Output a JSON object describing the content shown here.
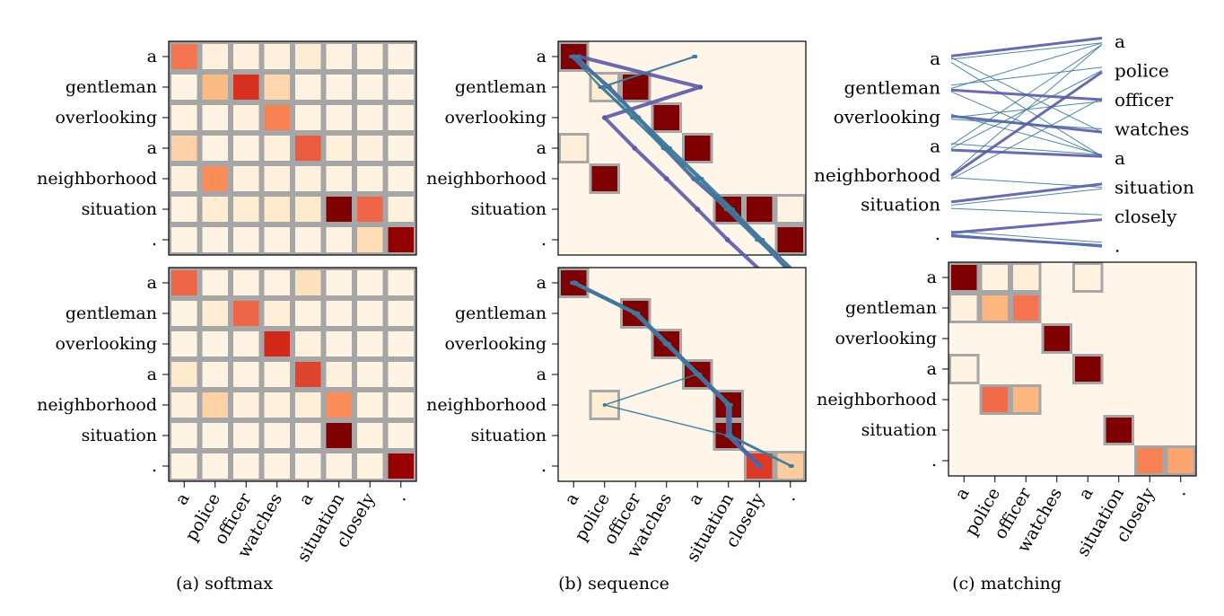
{
  "chart_data": [
    {
      "id": "softmax-top",
      "type": "heatmap",
      "panel": "(a)",
      "rows": [
        "a",
        "gentleman",
        "overlooking",
        "a",
        "neighborhood",
        "situation",
        "."
      ],
      "cols": [
        "a",
        "police",
        "officer",
        "watches",
        "a",
        "situation",
        "closely",
        "."
      ],
      "values": [
        [
          0.55,
          0.05,
          0.04,
          0.04,
          0.08,
          0.03,
          0.03,
          0.02
        ],
        [
          0.02,
          0.28,
          0.78,
          0.18,
          0.03,
          0.02,
          0.02,
          0.02
        ],
        [
          0.03,
          0.03,
          0.04,
          0.5,
          0.03,
          0.02,
          0.02,
          0.02
        ],
        [
          0.2,
          0.03,
          0.03,
          0.04,
          0.65,
          0.05,
          0.04,
          0.02
        ],
        [
          0.04,
          0.45,
          0.04,
          0.04,
          0.04,
          0.03,
          0.03,
          0.02
        ],
        [
          0.03,
          0.08,
          0.08,
          0.1,
          0.1,
          1.0,
          0.62,
          0.04
        ],
        [
          0.02,
          0.02,
          0.02,
          0.02,
          0.02,
          0.03,
          0.16,
          0.96
        ]
      ]
    },
    {
      "id": "softmax-bottom",
      "type": "heatmap",
      "panel": "(a)",
      "rows": [
        "a",
        "gentleman",
        "overlooking",
        "a",
        "neighborhood",
        "situation",
        "."
      ],
      "cols": [
        "a",
        "police",
        "officer",
        "watches",
        "a",
        "situation",
        "closely",
        "."
      ],
      "values": [
        [
          0.62,
          0.03,
          0.03,
          0.03,
          0.14,
          0.02,
          0.02,
          0.02
        ],
        [
          0.02,
          0.08,
          0.62,
          0.06,
          0.03,
          0.02,
          0.02,
          0.02
        ],
        [
          0.02,
          0.02,
          0.03,
          0.8,
          0.04,
          0.02,
          0.02,
          0.02
        ],
        [
          0.1,
          0.03,
          0.03,
          0.03,
          0.72,
          0.04,
          0.02,
          0.02
        ],
        [
          0.04,
          0.2,
          0.04,
          0.04,
          0.06,
          0.45,
          0.03,
          0.02
        ],
        [
          0.02,
          0.02,
          0.02,
          0.02,
          0.03,
          1.0,
          0.03,
          0.02
        ],
        [
          0.02,
          0.02,
          0.02,
          0.02,
          0.02,
          0.03,
          0.03,
          0.95
        ]
      ]
    },
    {
      "id": "sequence-top",
      "type": "heatmap",
      "panel": "(b)",
      "rows": [
        "a",
        "gentleman",
        "overlooking",
        "a",
        "neighborhood",
        "situation",
        "."
      ],
      "cols": [
        "a",
        "police",
        "officer",
        "watches",
        "a",
        "situation",
        "closely",
        "."
      ],
      "cells": [
        {
          "r": 0,
          "c": 0,
          "v": 1.0
        },
        {
          "r": 1,
          "c": 1,
          "v": 0.08
        },
        {
          "r": 1,
          "c": 2,
          "v": 1.0
        },
        {
          "r": 2,
          "c": 3,
          "v": 1.0
        },
        {
          "r": 3,
          "c": 0,
          "v": 0.06
        },
        {
          "r": 3,
          "c": 4,
          "v": 1.0
        },
        {
          "r": 4,
          "c": 1,
          "v": 1.0
        },
        {
          "r": 5,
          "c": 5,
          "v": 1.0
        },
        {
          "r": 5,
          "c": 6,
          "v": 1.0
        },
        {
          "r": 5,
          "c": 7,
          "v": 0.03
        },
        {
          "r": 6,
          "c": 7,
          "v": 1.0
        }
      ],
      "paths": [
        {
          "w": 4,
          "pts": [
            [
              0,
              0.0
            ],
            [
              1,
              0.5
            ],
            [
              2,
              0.3
            ],
            [
              3,
              -0.2
            ],
            [
              4,
              -0.4
            ],
            [
              5,
              0.0
            ],
            [
              6,
              0.0
            ],
            [
              7,
              -0.2
            ]
          ]
        },
        {
          "w": 4,
          "pts": [
            [
              0,
              0.6
            ],
            [
              4,
              0.3
            ],
            [
              1,
              0.0
            ],
            [
              2,
              -0.1
            ],
            [
              3,
              0.0
            ],
            [
              4,
              0.0
            ],
            [
              5,
              -0.1
            ],
            [
              6,
              0.1
            ],
            [
              7,
              0.2
            ]
          ]
        },
        {
          "w": 2,
          "pts": [
            [
              0,
              0.3
            ],
            [
              1,
              0.2
            ],
            [
              2,
              0.2
            ],
            [
              3,
              0.3
            ],
            [
              4,
              0.3
            ],
            [
              5,
              0.2
            ],
            [
              6,
              0.3
            ],
            [
              7,
              0.3
            ]
          ]
        },
        {
          "w": 1.5,
          "pts": [
            [
              0,
              -0.3
            ],
            [
              1,
              -0.3
            ],
            [
              2,
              0.0
            ],
            [
              3,
              0.1
            ],
            [
              4,
              0.1
            ],
            [
              5,
              0.3
            ],
            [
              6,
              -0.2
            ],
            [
              7,
              -0.2
            ]
          ]
        },
        {
          "w": 1.5,
          "pts": [
            [
              4,
              -0.2
            ],
            [
              1,
              -0.2
            ],
            [
              2,
              -0.3
            ],
            [
              3,
              -0.1
            ],
            [
              4,
              -0.2
            ],
            [
              5,
              0.4
            ],
            [
              6,
              0.4
            ],
            [
              7,
              0.4
            ]
          ]
        },
        {
          "w": 1.5,
          "pts": [
            [
              4,
              -0.4
            ],
            [
              1,
              -0.4
            ],
            [
              2,
              -0.4
            ],
            [
              3,
              -0.3
            ],
            [
              4,
              -0.3
            ],
            [
              5,
              -0.3
            ],
            [
              6,
              -0.3
            ],
            [
              7,
              -0.1
            ]
          ]
        },
        {
          "w": 2,
          "pts": [
            [
              0,
              0.4
            ],
            [
              1,
              0.4
            ],
            [
              2,
              0.4
            ],
            [
              3,
              0.4
            ],
            [
              4,
              0.5
            ],
            [
              5,
              0.5
            ],
            [
              6,
              0.2
            ],
            [
              7,
              0.4
            ]
          ]
        },
        {
          "w": 1.5,
          "pts": [
            [
              0,
              0.0
            ],
            [
              1,
              -0.5
            ],
            [
              2,
              -0.2
            ],
            [
              3,
              -0.4
            ],
            [
              4,
              0.4
            ],
            [
              5,
              -0.2
            ],
            [
              6,
              -0.1
            ],
            [
              7,
              0.1
            ]
          ]
        }
      ]
    },
    {
      "id": "sequence-bottom",
      "type": "heatmap",
      "panel": "(b)",
      "rows": [
        "a",
        "gentleman",
        "overlooking",
        "a",
        "neighborhood",
        "situation",
        "."
      ],
      "cols": [
        "a",
        "police",
        "officer",
        "watches",
        "a",
        "situation",
        "closely",
        "."
      ],
      "cells": [
        {
          "r": 0,
          "c": 0,
          "v": 1.0
        },
        {
          "r": 1,
          "c": 2,
          "v": 1.0
        },
        {
          "r": 2,
          "c": 3,
          "v": 1.0
        },
        {
          "r": 3,
          "c": 4,
          "v": 1.0
        },
        {
          "r": 4,
          "c": 1,
          "v": 0.08
        },
        {
          "r": 4,
          "c": 5,
          "v": 1.0
        },
        {
          "r": 5,
          "c": 5,
          "v": 1.0
        },
        {
          "r": 6,
          "c": 6,
          "v": 0.75
        },
        {
          "r": 6,
          "c": 7,
          "v": 0.22
        }
      ],
      "paths": [
        {
          "w": 4,
          "pts": [
            [
              0,
              0.0
            ],
            [
              2,
              0.0
            ],
            [
              3,
              0.0
            ],
            [
              4,
              0.0
            ],
            [
              5,
              0.0
            ],
            [
              5,
              0.0
            ],
            [
              6,
              0.0
            ]
          ]
        },
        {
          "w": 4,
          "pts": [
            [
              0,
              0.1
            ],
            [
              2,
              0.1
            ],
            [
              3,
              0.1
            ],
            [
              4,
              0.1
            ],
            [
              5,
              0.1
            ],
            [
              5,
              0.1
            ],
            [
              6,
              0.1
            ]
          ]
        },
        {
          "w": 2,
          "pts": [
            [
              0,
              0.2
            ],
            [
              2,
              0.2
            ],
            [
              3,
              0.2
            ],
            [
              4,
              0.2
            ],
            [
              5,
              0.2
            ],
            [
              5,
              0.2
            ],
            [
              7,
              0.1
            ]
          ]
        },
        {
          "w": 1.5,
          "pts": [
            [
              0,
              -0.1
            ],
            [
              2,
              -0.1
            ],
            [
              3,
              -0.1
            ],
            [
              4,
              -0.1
            ],
            [
              1,
              0.0
            ],
            [
              5,
              -0.1
            ],
            [
              7,
              0.0
            ]
          ]
        },
        {
          "w": 1.5,
          "pts": [
            [
              0,
              0.3
            ],
            [
              2,
              0.3
            ],
            [
              3,
              0.3
            ],
            [
              4,
              0.3
            ],
            [
              5,
              0.3
            ],
            [
              5,
              0.3
            ],
            [
              7,
              0.2
            ]
          ]
        },
        {
          "w": 1.5,
          "pts": [
            [
              0,
              -0.2
            ],
            [
              2,
              -0.2
            ],
            [
              3,
              -0.2
            ],
            [
              4,
              -0.2
            ],
            [
              5,
              -0.2
            ],
            [
              5,
              -0.2
            ],
            [
              6,
              -0.2
            ]
          ]
        }
      ]
    },
    {
      "id": "matching-top",
      "type": "bipartite",
      "panel": "(c)",
      "left": [
        "a",
        "gentleman",
        "overlooking",
        "a",
        "neighborhood",
        "situation",
        "."
      ],
      "right": [
        "a",
        "police",
        "officer",
        "watches",
        "a",
        "situation",
        "closely",
        "."
      ],
      "links": [
        {
          "l": 0,
          "r": 0,
          "w": 3
        },
        {
          "l": 0,
          "r": 0,
          "w": 1
        },
        {
          "l": 0,
          "r": 4,
          "w": 1
        },
        {
          "l": 0,
          "r": 3,
          "w": 1
        },
        {
          "l": 1,
          "r": 2,
          "w": 3
        },
        {
          "l": 1,
          "r": 1,
          "w": 1
        },
        {
          "l": 1,
          "r": 0,
          "w": 1
        },
        {
          "l": 1,
          "r": 4,
          "w": 1
        },
        {
          "l": 2,
          "r": 3,
          "w": 3
        },
        {
          "l": 2,
          "r": 3,
          "w": 1
        },
        {
          "l": 2,
          "r": 4,
          "w": 1
        },
        {
          "l": 2,
          "r": 2,
          "w": 1
        },
        {
          "l": 3,
          "r": 4,
          "w": 3
        },
        {
          "l": 3,
          "r": 0,
          "w": 1
        },
        {
          "l": 3,
          "r": 1,
          "w": 1
        },
        {
          "l": 3,
          "r": 4,
          "w": 1
        },
        {
          "l": 4,
          "r": 1,
          "w": 3
        },
        {
          "l": 4,
          "r": 2,
          "w": 1
        },
        {
          "l": 4,
          "r": 0,
          "w": 1
        },
        {
          "l": 4,
          "r": 5,
          "w": 1
        },
        {
          "l": 5,
          "r": 5,
          "w": 3
        },
        {
          "l": 5,
          "r": 5,
          "w": 1
        },
        {
          "l": 5,
          "r": 6,
          "w": 1
        },
        {
          "l": 6,
          "r": 6,
          "w": 3
        },
        {
          "l": 6,
          "r": 7,
          "w": 3
        },
        {
          "l": 6,
          "r": 7,
          "w": 1
        },
        {
          "l": 6,
          "r": 7,
          "w": 1
        }
      ]
    },
    {
      "id": "matching-bottom",
      "type": "heatmap",
      "panel": "(c)",
      "rows": [
        "a",
        "gentleman",
        "overlooking",
        "a",
        "neighborhood",
        "situation",
        "."
      ],
      "cols": [
        "a",
        "police",
        "officer",
        "watches",
        "a",
        "situation",
        "closely",
        "."
      ],
      "cells": [
        {
          "r": 0,
          "c": 0,
          "v": 1.0
        },
        {
          "r": 0,
          "c": 1,
          "v": 0.03
        },
        {
          "r": 0,
          "c": 2,
          "v": 0.06
        },
        {
          "r": 0,
          "c": 4,
          "v": 0.03
        },
        {
          "r": 1,
          "c": 0,
          "v": 0.04
        },
        {
          "r": 1,
          "c": 1,
          "v": 0.3
        },
        {
          "r": 1,
          "c": 2,
          "v": 0.55
        },
        {
          "r": 2,
          "c": 3,
          "v": 1.0
        },
        {
          "r": 3,
          "c": 0,
          "v": 0.02
        },
        {
          "r": 3,
          "c": 4,
          "v": 1.0
        },
        {
          "r": 4,
          "c": 1,
          "v": 0.6
        },
        {
          "r": 4,
          "c": 2,
          "v": 0.3
        },
        {
          "r": 5,
          "c": 5,
          "v": 1.0
        },
        {
          "r": 6,
          "c": 6,
          "v": 0.5
        },
        {
          "r": 6,
          "c": 7,
          "v": 0.36
        }
      ]
    }
  ],
  "captions": {
    "a": "(a) softmax",
    "b": "(b) sequence",
    "c": "(c) matching"
  },
  "colors": {
    "grid": "#a6a6a6",
    "background": "#fff5e8",
    "path": "#5a5aa8",
    "path_thin": "#3d7a9a"
  }
}
